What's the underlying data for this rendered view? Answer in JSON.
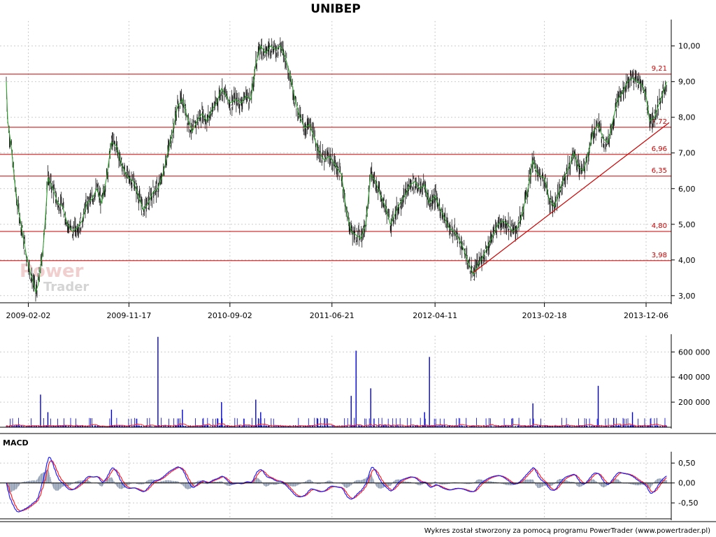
{
  "window": {
    "title": "UNIBEP"
  },
  "footer": {
    "text": "Wykres został stworzony za pomocą programu PowerTrader (www.powertrader.pl)"
  },
  "watermark": {
    "line1": "Power",
    "line2": "Trader"
  },
  "colors": {
    "price": "#1a1a1a",
    "price_trend": "#2ea02e",
    "level": "#cc0000",
    "volume": "#0000cc",
    "volume_ma": "#ff2020",
    "macd": "#2020ff",
    "signal": "#ff2020",
    "histogram": "#8090a8",
    "grid": "#cccccc",
    "axis": "#000000"
  },
  "chart_data": [
    {
      "type": "line",
      "title": "UNIBEP",
      "x_tick_labels": [
        "2009-02-02",
        "2009-11-17",
        "2010-09-02",
        "2011-06-21",
        "2012-04-11",
        "2013-02-18",
        "2013-12-06"
      ],
      "y_tick_labels": [
        "3,00",
        "4,00",
        "5,00",
        "6,00",
        "7,00",
        "8,00",
        "9,00",
        "10,00"
      ],
      "ylim": [
        2.8,
        10.7
      ],
      "grid": true,
      "series": [
        {
          "points": [
            [
              "2008-12-01",
              9.0
            ],
            [
              "2008-12-05",
              7.9
            ],
            [
              "2008-12-15",
              7.2
            ],
            [
              "2008-12-29",
              5.8
            ],
            [
              "2009-01-12",
              5.0
            ],
            [
              "2009-01-26",
              4.2
            ],
            [
              "2009-02-02",
              3.9
            ],
            [
              "2009-02-09",
              3.6
            ],
            [
              "2009-02-16",
              3.4
            ],
            [
              "2009-02-23",
              3.1
            ],
            [
              "2009-03-02",
              3.3
            ],
            [
              "2009-03-09",
              3.8
            ],
            [
              "2009-03-16",
              4.3
            ],
            [
              "2009-03-23",
              5.2
            ],
            [
              "2009-03-30",
              6.3
            ],
            [
              "2009-04-13",
              6.0
            ],
            [
              "2009-04-27",
              5.6
            ],
            [
              "2009-05-11",
              5.5
            ],
            [
              "2009-05-25",
              5.0
            ],
            [
              "2009-06-08",
              4.8
            ],
            [
              "2009-06-22",
              4.9
            ],
            [
              "2009-07-06",
              5.1
            ],
            [
              "2009-07-20",
              5.6
            ],
            [
              "2009-08-03",
              5.7
            ],
            [
              "2009-08-17",
              6.0
            ],
            [
              "2009-08-31",
              5.6
            ],
            [
              "2009-09-14",
              6.3
            ],
            [
              "2009-09-28",
              7.3
            ],
            [
              "2009-10-12",
              7.2
            ],
            [
              "2009-10-26",
              6.7
            ],
            [
              "2009-11-09",
              6.4
            ],
            [
              "2009-11-17",
              6.3
            ],
            [
              "2009-11-30",
              6.2
            ],
            [
              "2009-12-14",
              5.8
            ],
            [
              "2009-12-28",
              5.4
            ],
            [
              "2010-01-11",
              5.6
            ],
            [
              "2010-01-25",
              5.9
            ],
            [
              "2010-02-08",
              6.0
            ],
            [
              "2010-02-22",
              6.4
            ],
            [
              "2010-03-08",
              7.0
            ],
            [
              "2010-03-22",
              7.6
            ],
            [
              "2010-04-05",
              8.3
            ],
            [
              "2010-04-19",
              8.5
            ],
            [
              "2010-05-03",
              8.0
            ],
            [
              "2010-05-17",
              7.6
            ],
            [
              "2010-05-31",
              7.9
            ],
            [
              "2010-06-14",
              8.1
            ],
            [
              "2010-06-28",
              7.9
            ],
            [
              "2010-07-12",
              8.2
            ],
            [
              "2010-07-26",
              8.4
            ],
            [
              "2010-08-09",
              8.8
            ],
            [
              "2010-08-23",
              8.6
            ],
            [
              "2010-09-02",
              8.4
            ],
            [
              "2010-09-20",
              8.5
            ],
            [
              "2010-10-04",
              8.4
            ],
            [
              "2010-10-18",
              8.6
            ],
            [
              "2010-11-01",
              8.5
            ],
            [
              "2010-11-15",
              9.5
            ],
            [
              "2010-11-29",
              10.0
            ],
            [
              "2010-12-13",
              9.8
            ],
            [
              "2010-12-27",
              10.0
            ],
            [
              "2011-01-10",
              9.9
            ],
            [
              "2011-01-24",
              10.0
            ],
            [
              "2011-02-07",
              9.7
            ],
            [
              "2011-02-21",
              9.2
            ],
            [
              "2011-03-07",
              8.5
            ],
            [
              "2011-03-21",
              8.0
            ],
            [
              "2011-04-04",
              7.7
            ],
            [
              "2011-04-18",
              7.8
            ],
            [
              "2011-05-02",
              7.4
            ],
            [
              "2011-05-16",
              7.0
            ],
            [
              "2011-05-30",
              6.8
            ],
            [
              "2011-06-13",
              6.9
            ],
            [
              "2011-06-21",
              6.8
            ],
            [
              "2011-07-04",
              6.6
            ],
            [
              "2011-07-18",
              6.4
            ],
            [
              "2011-08-01",
              5.4
            ],
            [
              "2011-08-15",
              4.8
            ],
            [
              "2011-08-29",
              4.7
            ],
            [
              "2011-09-12",
              4.6
            ],
            [
              "2011-09-26",
              5.0
            ],
            [
              "2011-10-10",
              6.4
            ],
            [
              "2011-10-24",
              6.2
            ],
            [
              "2011-11-07",
              5.8
            ],
            [
              "2011-11-21",
              5.5
            ],
            [
              "2011-12-05",
              5.0
            ],
            [
              "2011-12-19",
              5.3
            ],
            [
              "2012-01-02",
              5.6
            ],
            [
              "2012-01-16",
              5.8
            ],
            [
              "2012-01-30",
              6.1
            ],
            [
              "2012-02-13",
              6.2
            ],
            [
              "2012-02-27",
              6.0
            ],
            [
              "2012-03-12",
              6.1
            ],
            [
              "2012-03-26",
              5.6
            ],
            [
              "2012-04-11",
              5.8
            ],
            [
              "2012-04-23",
              5.5
            ],
            [
              "2012-05-07",
              5.2
            ],
            [
              "2012-05-21",
              4.9
            ],
            [
              "2012-06-04",
              4.8
            ],
            [
              "2012-06-18",
              4.6
            ],
            [
              "2012-07-02",
              4.3
            ],
            [
              "2012-07-16",
              3.9
            ],
            [
              "2012-07-30",
              3.6
            ],
            [
              "2012-08-13",
              3.9
            ],
            [
              "2012-08-27",
              4.1
            ],
            [
              "2012-09-10",
              4.4
            ],
            [
              "2012-09-24",
              4.7
            ],
            [
              "2012-10-08",
              5.0
            ],
            [
              "2012-10-22",
              5.1
            ],
            [
              "2012-11-05",
              5.0
            ],
            [
              "2012-11-19",
              4.8
            ],
            [
              "2012-12-03",
              4.9
            ],
            [
              "2012-12-17",
              5.3
            ],
            [
              "2013-01-02",
              6.0
            ],
            [
              "2013-01-16",
              6.8
            ],
            [
              "2013-01-30",
              6.4
            ],
            [
              "2013-02-18",
              6.3
            ],
            [
              "2013-03-04",
              5.7
            ],
            [
              "2013-03-18",
              5.5
            ],
            [
              "2013-04-01",
              5.9
            ],
            [
              "2013-04-15",
              6.3
            ],
            [
              "2013-04-29",
              6.6
            ],
            [
              "2013-05-13",
              7.0
            ],
            [
              "2013-05-27",
              6.6
            ],
            [
              "2013-06-10",
              6.5
            ],
            [
              "2013-06-24",
              7.0
            ],
            [
              "2013-07-08",
              7.6
            ],
            [
              "2013-07-22",
              7.8
            ],
            [
              "2013-08-05",
              7.4
            ],
            [
              "2013-08-19",
              7.3
            ],
            [
              "2013-09-02",
              7.9
            ],
            [
              "2013-09-16",
              8.5
            ],
            [
              "2013-09-30",
              8.7
            ],
            [
              "2013-10-14",
              9.0
            ],
            [
              "2013-10-28",
              9.1
            ],
            [
              "2013-11-11",
              9.0
            ],
            [
              "2013-11-25",
              8.9
            ],
            [
              "2013-12-06",
              8.6
            ],
            [
              "2013-12-16",
              7.9
            ],
            [
              "2013-12-30",
              8.0
            ],
            [
              "2014-01-13",
              8.4
            ],
            [
              "2014-01-27",
              8.8
            ],
            [
              "2014-02-03",
              9.0
            ]
          ]
        }
      ],
      "horizontal_levels": [
        {
          "value": 9.21,
          "label": "9,21"
        },
        {
          "value": 7.72,
          "label": "7,72"
        },
        {
          "value": 6.96,
          "label": "6,96"
        },
        {
          "value": 6.35,
          "label": "6,35"
        },
        {
          "value": 4.8,
          "label": "4,80"
        },
        {
          "value": 3.98,
          "label": "3,98"
        }
      ],
      "trendline": {
        "from": [
          "2012-07-30",
          3.65
        ],
        "to": [
          "2014-02-10",
          7.85
        ]
      }
    },
    {
      "type": "bar",
      "title": "",
      "y_tick_labels": [
        "200 000",
        "400 000",
        "600 000"
      ],
      "ylim": [
        0,
        730000
      ],
      "spikes": [
        {
          "x": "2009-03-09",
          "value": 260000
        },
        {
          "x": "2009-03-30",
          "value": 120000
        },
        {
          "x": "2009-09-28",
          "value": 140000
        },
        {
          "x": "2010-02-08",
          "value": 720000
        },
        {
          "x": "2010-04-19",
          "value": 140000
        },
        {
          "x": "2010-08-09",
          "value": 200000
        },
        {
          "x": "2010-11-15",
          "value": 220000
        },
        {
          "x": "2010-11-29",
          "value": 120000
        },
        {
          "x": "2011-08-15",
          "value": 250000
        },
        {
          "x": "2011-08-29",
          "value": 610000
        },
        {
          "x": "2011-10-10",
          "value": 310000
        },
        {
          "x": "2012-03-12",
          "value": 120000
        },
        {
          "x": "2012-03-26",
          "value": 560000
        },
        {
          "x": "2013-01-16",
          "value": 190000
        },
        {
          "x": "2013-07-22",
          "value": 330000
        },
        {
          "x": "2013-10-28",
          "value": 120000
        }
      ]
    },
    {
      "type": "line",
      "title": "MACD",
      "y_tick_labels": [
        "-0,50",
        "0,00",
        "0,50"
      ],
      "ylim": [
        -0.9,
        0.75
      ],
      "series": [
        {
          "role": "macd"
        },
        {
          "role": "signal"
        },
        {
          "role": "histogram"
        }
      ]
    }
  ]
}
